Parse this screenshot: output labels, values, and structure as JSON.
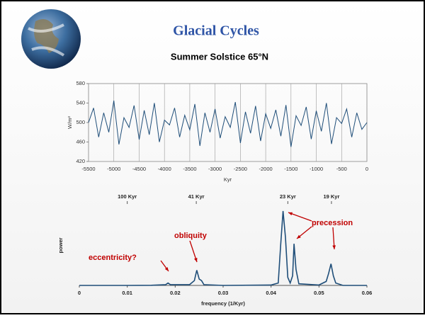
{
  "header": {
    "title": "Glacial Cycles"
  },
  "chart_data": [
    {
      "type": "line",
      "title": "Summer Solstice 65°N",
      "xlabel": "Kyr",
      "ylabel": "W/m²",
      "color": "#1f4e79",
      "grid": "x",
      "x": [
        -5500,
        -5400,
        -5300,
        -5200,
        -5100,
        -5000,
        -4900,
        -4800,
        -4700,
        -4600,
        -4500,
        -4400,
        -4300,
        -4200,
        -4100,
        -4000,
        -3900,
        -3800,
        -3700,
        -3600,
        -3500,
        -3400,
        -3300,
        -3200,
        -3100,
        -3000,
        -2900,
        -2800,
        -2700,
        -2600,
        -2500,
        -2400,
        -2300,
        -2200,
        -2100,
        -2000,
        -1900,
        -1800,
        -1700,
        -1600,
        -1500,
        -1400,
        -1300,
        -1200,
        -1100,
        -1000,
        -900,
        -800,
        -700,
        -600,
        -500,
        -400,
        -300,
        -200,
        -100,
        0
      ],
      "values": [
        500,
        530,
        470,
        520,
        480,
        545,
        455,
        510,
        490,
        535,
        465,
        525,
        475,
        540,
        460,
        505,
        495,
        530,
        470,
        515,
        485,
        538,
        452,
        520,
        480,
        528,
        468,
        512,
        490,
        542,
        458,
        522,
        478,
        534,
        462,
        518,
        488,
        526,
        472,
        536,
        450,
        514,
        494,
        532,
        466,
        524,
        482,
        540,
        456,
        510,
        498,
        528,
        470,
        520,
        486,
        500
      ],
      "xlim": [
        -5500,
        0
      ],
      "ylim": [
        420,
        580
      ],
      "xticks": [
        -5500,
        -5000,
        -4500,
        -4000,
        -3500,
        -3000,
        -2500,
        -2000,
        -1500,
        -1000,
        -500,
        0
      ],
      "yticks": [
        420,
        460,
        500,
        540,
        580
      ]
    },
    {
      "type": "line",
      "xlabel": "frequency (1/Kyr)",
      "ylabel": "power",
      "color": "#1f4e79",
      "x": [
        0,
        0.005,
        0.01,
        0.015,
        0.018,
        0.0185,
        0.019,
        0.023,
        0.024,
        0.0245,
        0.025,
        0.0255,
        0.026,
        0.03,
        0.04,
        0.0415,
        0.042,
        0.0425,
        0.043,
        0.0435,
        0.044,
        0.0445,
        0.0448,
        0.0452,
        0.0458,
        0.05,
        0.0515,
        0.052,
        0.0525,
        0.053,
        0.0535,
        0.055,
        0.06
      ],
      "values": [
        0,
        0,
        0,
        0.002,
        0.01,
        0.03,
        0.01,
        0.01,
        0.06,
        0.19,
        0.08,
        0.06,
        0.01,
        0,
        0.005,
        0.03,
        0.5,
        0.93,
        0.6,
        0.1,
        0.03,
        0.12,
        0.52,
        0.2,
        0.02,
        0.005,
        0.05,
        0.15,
        0.27,
        0.12,
        0.03,
        0,
        0
      ],
      "xlim": [
        0,
        0.06
      ],
      "ylim": [
        0,
        1
      ],
      "xticks": [
        0,
        0.01,
        0.02,
        0.03,
        0.04,
        0.05,
        0.06
      ],
      "x2ticks": [
        {
          "value": 0.01,
          "label": "100 Kyr"
        },
        {
          "value": 0.0244,
          "label": "41 Kyr"
        },
        {
          "value": 0.0435,
          "label": "23 Kyr"
        },
        {
          "value": 0.0526,
          "label": "19 Kyr"
        }
      ],
      "annotations": [
        "eccentricity?",
        "obliquity",
        "precession"
      ]
    }
  ]
}
